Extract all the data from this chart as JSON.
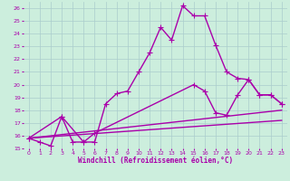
{
  "xlabel": "Windchill (Refroidissement éolien,°C)",
  "background_color": "#cceedd",
  "grid_color": "#aacccc",
  "line_color": "#aa00aa",
  "xlim": [
    -0.5,
    23.5
  ],
  "ylim": [
    15,
    26.5
  ],
  "xticks": [
    0,
    1,
    2,
    3,
    4,
    5,
    6,
    7,
    8,
    9,
    10,
    11,
    12,
    13,
    14,
    15,
    16,
    17,
    18,
    19,
    20,
    21,
    22,
    23
  ],
  "yticks": [
    15,
    16,
    17,
    18,
    19,
    20,
    21,
    22,
    23,
    24,
    25,
    26
  ],
  "lines": [
    {
      "x": [
        0,
        1,
        2,
        3,
        4,
        5,
        6,
        7,
        8,
        9,
        10,
        11,
        12,
        13,
        14,
        15,
        16,
        17,
        18,
        19,
        20,
        21,
        22,
        23
      ],
      "y": [
        15.8,
        15.5,
        15.2,
        17.5,
        15.5,
        15.5,
        15.5,
        18.5,
        19.3,
        19.5,
        21.0,
        22.5,
        24.5,
        23.5,
        26.2,
        25.4,
        25.4,
        23.1,
        21.0,
        20.5,
        20.4,
        19.2,
        19.2,
        18.5
      ],
      "marker": true,
      "linewidth": 1.0
    },
    {
      "x": [
        0,
        23
      ],
      "y": [
        15.8,
        18.0
      ],
      "marker": false,
      "linewidth": 1.0
    },
    {
      "x": [
        0,
        23
      ],
      "y": [
        15.8,
        17.2
      ],
      "marker": false,
      "linewidth": 1.0
    },
    {
      "x": [
        0,
        3,
        5,
        6,
        15,
        16,
        17,
        18,
        19,
        20,
        21,
        22,
        23
      ],
      "y": [
        15.8,
        17.5,
        15.5,
        16.2,
        20.0,
        19.5,
        17.8,
        17.6,
        19.2,
        20.4,
        19.2,
        19.2,
        18.5
      ],
      "marker": true,
      "linewidth": 1.0
    }
  ]
}
